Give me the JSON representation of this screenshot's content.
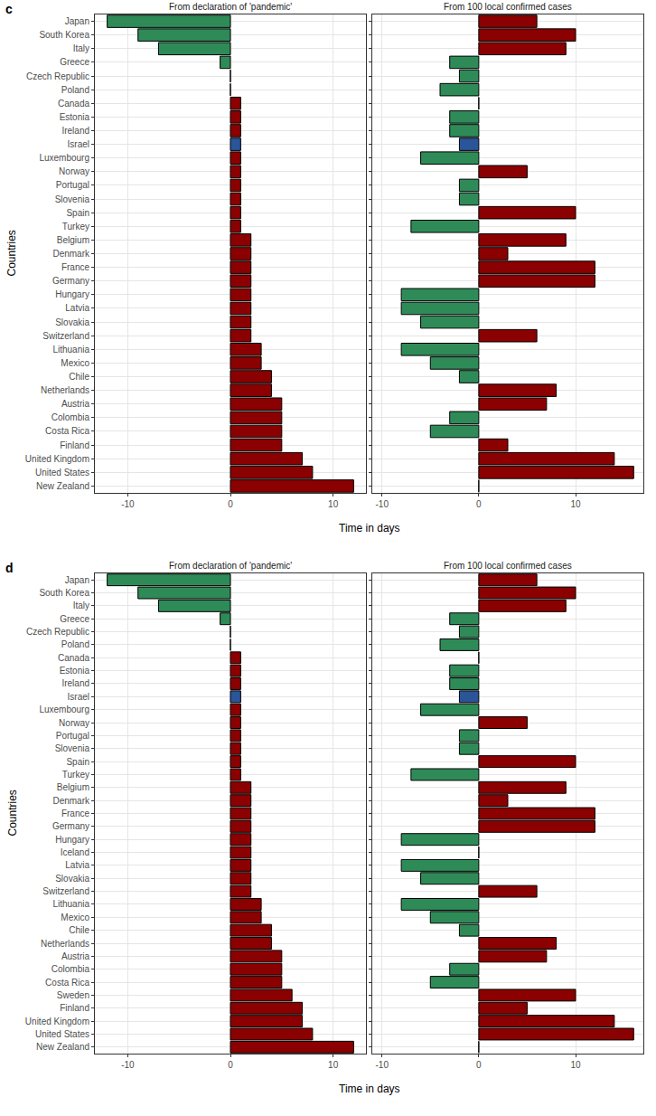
{
  "chart_data": [
    {
      "type": "bar",
      "orientation": "horizontal",
      "annotations": [
        "c"
      ],
      "title": "From declaration of 'pandemic'",
      "x_label": "Time in days",
      "y_label": "Countries",
      "categories": [
        "Japan",
        "South Korea",
        "Italy",
        "Greece",
        "Czech Republic",
        "Poland",
        "Canada",
        "Estonia",
        "Ireland",
        "Israel",
        "Luxembourg",
        "Norway",
        "Portugal",
        "Slovenia",
        "Spain",
        "Turkey",
        "Belgium",
        "Denmark",
        "France",
        "Germany",
        "Hungary",
        "Latvia",
        "Slovakia",
        "Switzerland",
        "Lithuania",
        "Mexico",
        "Chile",
        "Netherlands",
        "Austria",
        "Colombia",
        "Costa Rica",
        "Finland",
        "United Kingdom",
        "United States",
        "New Zealand"
      ],
      "values": [
        -12,
        -9,
        -7,
        -1,
        0,
        0,
        1,
        1,
        1,
        1,
        1,
        1,
        1,
        1,
        1,
        1,
        2,
        2,
        2,
        2,
        2,
        2,
        2,
        2,
        3,
        3,
        4,
        4,
        5,
        5,
        5,
        5,
        7,
        8,
        12
      ],
      "colors": [
        "#2e8b57",
        "#2e8b57",
        "#2e8b57",
        "#2e8b57",
        "#2e8b57",
        "#2e8b57",
        "#8b0000",
        "#8b0000",
        "#8b0000",
        "#2a5599",
        "#8b0000",
        "#8b0000",
        "#8b0000",
        "#8b0000",
        "#8b0000",
        "#8b0000",
        "#8b0000",
        "#8b0000",
        "#8b0000",
        "#8b0000",
        "#8b0000",
        "#8b0000",
        "#8b0000",
        "#8b0000",
        "#8b0000",
        "#8b0000",
        "#8b0000",
        "#8b0000",
        "#8b0000",
        "#8b0000",
        "#8b0000",
        "#8b0000",
        "#8b0000",
        "#8b0000",
        "#8b0000"
      ],
      "xlim": [
        -13.2,
        13.2
      ],
      "xticks": [
        -10,
        0,
        10
      ],
      "grid": true
    },
    {
      "type": "bar",
      "orientation": "horizontal",
      "title": "From 100 local confirmed cases",
      "tick_labels": "x",
      "categories": [
        "Japan",
        "South Korea",
        "Italy",
        "Greece",
        "Czech Republic",
        "Poland",
        "Canada",
        "Estonia",
        "Ireland",
        "Israel",
        "Luxembourg",
        "Norway",
        "Portugal",
        "Slovenia",
        "Spain",
        "Turkey",
        "Belgium",
        "Denmark",
        "France",
        "Germany",
        "Hungary",
        "Latvia",
        "Slovakia",
        "Switzerland",
        "Lithuania",
        "Mexico",
        "Chile",
        "Netherlands",
        "Austria",
        "Colombia",
        "Costa Rica",
        "Finland",
        "United Kingdom",
        "United States",
        "New Zealand"
      ],
      "values": [
        6,
        10,
        9,
        -3,
        -2,
        -4,
        0,
        -3,
        -3,
        -2,
        -6,
        5,
        -2,
        -2,
        10,
        -7,
        9,
        3,
        12,
        12,
        -8,
        -8,
        -6,
        6,
        -8,
        -5,
        -2,
        8,
        7,
        -3,
        -5,
        3,
        14,
        16,
        0
      ],
      "colors": [
        "#8b0000",
        "#8b0000",
        "#8b0000",
        "#2e8b57",
        "#2e8b57",
        "#2e8b57",
        "#8b0000",
        "#2e8b57",
        "#2e8b57",
        "#2a5599",
        "#2e8b57",
        "#8b0000",
        "#2e8b57",
        "#2e8b57",
        "#8b0000",
        "#2e8b57",
        "#8b0000",
        "#8b0000",
        "#8b0000",
        "#8b0000",
        "#2e8b57",
        "#2e8b57",
        "#2e8b57",
        "#8b0000",
        "#2e8b57",
        "#2e8b57",
        "#2e8b57",
        "#8b0000",
        "#8b0000",
        "#2e8b57",
        "#2e8b57",
        "#8b0000",
        "#8b0000",
        "#8b0000",
        "#8b0000"
      ],
      "xlim": [
        -11,
        17
      ],
      "xticks": [
        -10,
        0,
        10
      ],
      "grid": true
    },
    {
      "type": "bar",
      "orientation": "horizontal",
      "annotations": [
        "d"
      ],
      "title": "From declaration of 'pandemic'",
      "x_label": "Time in days",
      "y_label": "Countries",
      "categories": [
        "Japan",
        "South Korea",
        "Italy",
        "Greece",
        "Czech Republic",
        "Poland",
        "Canada",
        "Estonia",
        "Ireland",
        "Israel",
        "Luxembourg",
        "Norway",
        "Portugal",
        "Slovenia",
        "Spain",
        "Turkey",
        "Belgium",
        "Denmark",
        "France",
        "Germany",
        "Hungary",
        "Iceland",
        "Latvia",
        "Slovakia",
        "Switzerland",
        "Lithuania",
        "Mexico",
        "Chile",
        "Netherlands",
        "Austria",
        "Colombia",
        "Costa Rica",
        "Sweden",
        "Finland",
        "United Kingdom",
        "United States",
        "New Zealand"
      ],
      "values": [
        -12,
        -9,
        -7,
        -1,
        0,
        0,
        1,
        1,
        1,
        1,
        1,
        1,
        1,
        1,
        1,
        1,
        2,
        2,
        2,
        2,
        2,
        2,
        2,
        2,
        2,
        3,
        3,
        4,
        4,
        5,
        5,
        5,
        6,
        7,
        7,
        8,
        12
      ],
      "colors": [
        "#2e8b57",
        "#2e8b57",
        "#2e8b57",
        "#2e8b57",
        "#2e8b57",
        "#2e8b57",
        "#8b0000",
        "#8b0000",
        "#8b0000",
        "#2a5599",
        "#8b0000",
        "#8b0000",
        "#8b0000",
        "#8b0000",
        "#8b0000",
        "#8b0000",
        "#8b0000",
        "#8b0000",
        "#8b0000",
        "#8b0000",
        "#8b0000",
        "#8b0000",
        "#8b0000",
        "#8b0000",
        "#8b0000",
        "#8b0000",
        "#8b0000",
        "#8b0000",
        "#8b0000",
        "#8b0000",
        "#8b0000",
        "#8b0000",
        "#8b0000",
        "#8b0000",
        "#8b0000",
        "#8b0000",
        "#8b0000"
      ],
      "xlim": [
        -13.2,
        13.2
      ],
      "xticks": [
        -10,
        0,
        10
      ],
      "grid": true
    },
    {
      "type": "bar",
      "orientation": "horizontal",
      "title": "From 100 local confirmed cases",
      "tick_labels": "x",
      "categories": [
        "Japan",
        "South Korea",
        "Italy",
        "Greece",
        "Czech Republic",
        "Poland",
        "Canada",
        "Estonia",
        "Ireland",
        "Israel",
        "Luxembourg",
        "Norway",
        "Portugal",
        "Slovenia",
        "Spain",
        "Turkey",
        "Belgium",
        "Denmark",
        "France",
        "Germany",
        "Hungary",
        "Iceland",
        "Latvia",
        "Slovakia",
        "Switzerland",
        "Lithuania",
        "Mexico",
        "Chile",
        "Netherlands",
        "Austria",
        "Colombia",
        "Costa Rica",
        "Sweden",
        "Finland",
        "United Kingdom",
        "United States",
        "New Zealand"
      ],
      "values": [
        6,
        10,
        9,
        -3,
        -2,
        -4,
        0,
        -3,
        -3,
        -2,
        -6,
        5,
        -2,
        -2,
        10,
        -7,
        9,
        3,
        12,
        12,
        -8,
        0,
        -8,
        -6,
        6,
        -8,
        -5,
        -2,
        8,
        7,
        -3,
        -5,
        10,
        5,
        14,
        16,
        0
      ],
      "colors": [
        "#8b0000",
        "#8b0000",
        "#8b0000",
        "#2e8b57",
        "#2e8b57",
        "#2e8b57",
        "#8b0000",
        "#2e8b57",
        "#2e8b57",
        "#2a5599",
        "#2e8b57",
        "#8b0000",
        "#2e8b57",
        "#2e8b57",
        "#8b0000",
        "#2e8b57",
        "#8b0000",
        "#8b0000",
        "#8b0000",
        "#8b0000",
        "#2e8b57",
        "#8b0000",
        "#2e8b57",
        "#2e8b57",
        "#8b0000",
        "#2e8b57",
        "#2e8b57",
        "#2e8b57",
        "#8b0000",
        "#8b0000",
        "#2e8b57",
        "#2e8b57",
        "#8b0000",
        "#8b0000",
        "#8b0000",
        "#8b0000",
        "#8b0000"
      ],
      "xlim": [
        -11,
        17
      ],
      "xticks": [
        -10,
        0,
        10
      ],
      "grid": true
    }
  ]
}
